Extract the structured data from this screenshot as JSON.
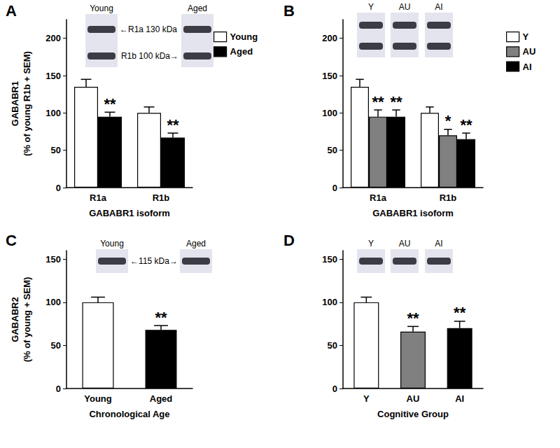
{
  "chart_data": [
    {
      "type": "bar",
      "title": "A",
      "ylabel": "GABABR1\n(% of young R1b + SEM)",
      "xlabel": "GABABR1 isoform",
      "categories": [
        "R1a",
        "R1b"
      ],
      "series": [
        {
          "name": "Young",
          "color": "#ffffff",
          "values": [
            135,
            100
          ],
          "errors": [
            10,
            8
          ],
          "significance": [
            null,
            null
          ]
        },
        {
          "name": "Aged",
          "color": "#000000",
          "values": [
            95,
            67
          ],
          "errors": [
            6,
            6
          ],
          "significance": [
            "**",
            "**"
          ]
        }
      ],
      "ylim": [
        0,
        225
      ],
      "yticks": [
        0,
        50,
        100,
        150,
        200
      ],
      "grid": false,
      "legend": "right",
      "annotations": {
        "blot_lanes": [
          "Young",
          "Aged"
        ],
        "blot_bands": [
          "←R1a 130 kDa",
          "R1b 100 kDa→"
        ]
      }
    },
    {
      "type": "bar",
      "title": "B",
      "xlabel": "GABABR1 isoform",
      "categories": [
        "R1a",
        "R1b"
      ],
      "series": [
        {
          "name": "Y",
          "color": "#ffffff",
          "values": [
            135,
            100
          ],
          "errors": [
            10,
            8
          ],
          "significance": [
            null,
            null
          ]
        },
        {
          "name": "AU",
          "color": "#808080",
          "values": [
            95,
            70
          ],
          "errors": [
            9,
            8
          ],
          "significance": [
            "**",
            "*"
          ]
        },
        {
          "name": "AI",
          "color": "#000000",
          "values": [
            95,
            65
          ],
          "errors": [
            9,
            8
          ],
          "significance": [
            "**",
            "**"
          ]
        }
      ],
      "ylim": [
        0,
        225
      ],
      "yticks": [
        0,
        50,
        100,
        150,
        200
      ],
      "grid": false,
      "legend": "right",
      "annotations": {
        "blot_lanes": [
          "Y",
          "AU",
          "AI"
        ]
      }
    },
    {
      "type": "bar",
      "title": "C",
      "ylabel": "GABABR2\n(% of young + SEM)",
      "xlabel": "Chronological Age",
      "categories": [
        "Young",
        "Aged"
      ],
      "values": [
        100,
        68
      ],
      "errors": [
        6,
        5
      ],
      "colors": [
        "#ffffff",
        "#000000"
      ],
      "significance": [
        null,
        "**"
      ],
      "ylim": [
        0,
        160
      ],
      "yticks": [
        0,
        50,
        100,
        150
      ],
      "grid": false,
      "annotations": {
        "blot_lanes": [
          "Young",
          "Aged"
        ],
        "blot_bands": [
          "←115 kDa→"
        ]
      }
    },
    {
      "type": "bar",
      "title": "D",
      "xlabel": "Cognitive Group",
      "categories": [
        "Y",
        "AU",
        "AI"
      ],
      "values": [
        100,
        66,
        70
      ],
      "errors": [
        6,
        6,
        8
      ],
      "colors": [
        "#ffffff",
        "#808080",
        "#000000"
      ],
      "significance": [
        null,
        "**",
        "**"
      ],
      "ylim": [
        0,
        160
      ],
      "yticks": [
        0,
        50,
        100,
        150
      ],
      "grid": false,
      "annotations": {
        "blot_lanes": [
          "Y",
          "AU",
          "AI"
        ]
      }
    }
  ]
}
